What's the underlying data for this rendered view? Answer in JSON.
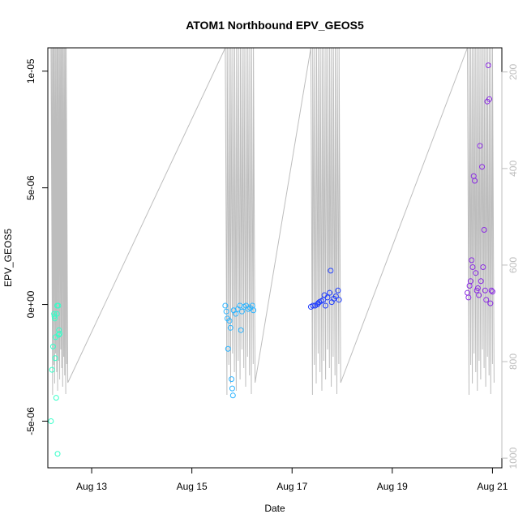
{
  "chart_data": {
    "type": "scatter",
    "title": "ATOM1 Northbound EPV_GEOS5",
    "xlabel": "Date",
    "ylabel": "EPV_GEOS5",
    "x_axis": {
      "type": "date",
      "range": [
        "2012-08-12T03:00",
        "2012-08-21T04:30"
      ],
      "ticks": [
        {
          "value": "2012-08-13",
          "label": "Aug 13"
        },
        {
          "value": "2012-08-15",
          "label": "Aug 15"
        },
        {
          "value": "2012-08-17",
          "label": "Aug 17"
        },
        {
          "value": "2012-08-19",
          "label": "Aug 19"
        },
        {
          "value": "2012-08-21",
          "label": "Aug 21"
        }
      ]
    },
    "y_axis": {
      "range": [
        -7e-06,
        1.1e-05
      ],
      "ticks": [
        {
          "value": -5e-06,
          "label": "-5e-06"
        },
        {
          "value": 0,
          "label": "0e+00"
        },
        {
          "value": 5e-06,
          "label": "5e-06"
        },
        {
          "value": 1e-05,
          "label": "1e-05"
        }
      ]
    },
    "right_axis": {
      "range": [
        1020,
        150
      ],
      "ticks": [
        {
          "value": 200,
          "label": "200"
        },
        {
          "value": 400,
          "label": "400"
        },
        {
          "value": 600,
          "label": "600"
        },
        {
          "value": 800,
          "label": "800"
        },
        {
          "value": 1000,
          "label": "1000"
        }
      ],
      "color": "#bdbdbd"
    },
    "line_color": "#bdbdbd",
    "point_colors": {
      "start": "#33ffc8",
      "mid": "#2db4ff",
      "deep": "#1e3cff",
      "end": "#8a2be2"
    },
    "series": [
      {
        "points": [
          {
            "x": "2012-08-12T06:00",
            "y": -4e-07
          },
          {
            "x": "2012-08-12T06:10",
            "y": -5e-07
          },
          {
            "x": "2012-08-12T06:20",
            "y": -6e-07
          },
          {
            "x": "2012-08-12T04:30",
            "y": -5e-06
          },
          {
            "x": "2012-08-12T05:00",
            "y": -2.8e-06
          },
          {
            "x": "2012-08-12T05:30",
            "y": -1.8e-06
          },
          {
            "x": "2012-08-12T06:30",
            "y": -2.3e-06
          },
          {
            "x": "2012-08-12T06:40",
            "y": -1.4e-06
          },
          {
            "x": "2012-08-12T07:00",
            "y": -4e-06
          },
          {
            "x": "2012-08-12T07:20",
            "y": -4e-07
          },
          {
            "x": "2012-08-12T07:40",
            "y": -6.4e-06
          },
          {
            "x": "2012-08-12T08:00",
            "y": -5e-08
          },
          {
            "x": "2012-08-12T07:30",
            "y": -5e-08
          },
          {
            "x": "2012-08-12T08:10",
            "y": -1.3e-06
          },
          {
            "x": "2012-08-12T08:20",
            "y": -1.1e-06
          },
          {
            "x": "2012-08-12T08:40",
            "y": -1.25e-06
          }
        ]
      },
      {
        "points": [
          {
            "x": "2012-08-15T16:00",
            "y": -5e-08
          },
          {
            "x": "2012-08-15T16:30",
            "y": -3e-07
          },
          {
            "x": "2012-08-15T17:00",
            "y": -6e-07
          },
          {
            "x": "2012-08-15T17:20",
            "y": -1.9e-06
          },
          {
            "x": "2012-08-15T18:00",
            "y": -7e-07
          },
          {
            "x": "2012-08-15T18:30",
            "y": -1e-06
          },
          {
            "x": "2012-08-15T19:00",
            "y": -3.2e-06
          },
          {
            "x": "2012-08-15T19:20",
            "y": -3.6e-06
          },
          {
            "x": "2012-08-15T19:40",
            "y": -3.9e-06
          },
          {
            "x": "2012-08-15T20:00",
            "y": -2.5e-07
          },
          {
            "x": "2012-08-15T21:00",
            "y": -4e-07
          },
          {
            "x": "2012-08-15T22:00",
            "y": -2e-07
          },
          {
            "x": "2012-08-15T23:00",
            "y": -5e-08
          },
          {
            "x": "2012-08-15T23:30",
            "y": -1.1e-06
          },
          {
            "x": "2012-08-16T00:00",
            "y": -3e-07
          },
          {
            "x": "2012-08-16T01:00",
            "y": -1e-07
          },
          {
            "x": "2012-08-16T02:00",
            "y": -5e-08
          },
          {
            "x": "2012-08-16T03:00",
            "y": -2e-07
          },
          {
            "x": "2012-08-16T04:00",
            "y": -1.5e-07
          },
          {
            "x": "2012-08-16T05:00",
            "y": -5e-08
          },
          {
            "x": "2012-08-16T05:30",
            "y": -2.5e-07
          }
        ]
      },
      {
        "points": [
          {
            "x": "2012-08-17T09:00",
            "y": -1e-07
          },
          {
            "x": "2012-08-17T10:00",
            "y": -5e-08
          },
          {
            "x": "2012-08-17T11:00",
            "y": -5e-08
          },
          {
            "x": "2012-08-17T12:00",
            "y": 0.0
          },
          {
            "x": "2012-08-17T12:30",
            "y": 5e-08
          },
          {
            "x": "2012-08-17T13:00",
            "y": 1e-07
          },
          {
            "x": "2012-08-17T14:00",
            "y": 1.5e-07
          },
          {
            "x": "2012-08-17T15:00",
            "y": 2e-07
          },
          {
            "x": "2012-08-17T15:30",
            "y": 4e-07
          },
          {
            "x": "2012-08-17T16:00",
            "y": -5e-08
          },
          {
            "x": "2012-08-17T17:00",
            "y": 3e-07
          },
          {
            "x": "2012-08-17T18:00",
            "y": 5e-07
          },
          {
            "x": "2012-08-17T18:30",
            "y": 1.45e-06
          },
          {
            "x": "2012-08-17T19:00",
            "y": 1e-07
          },
          {
            "x": "2012-08-17T20:00",
            "y": 2.5e-07
          },
          {
            "x": "2012-08-17T21:00",
            "y": 3.5e-07
          },
          {
            "x": "2012-08-17T22:00",
            "y": 6e-07
          },
          {
            "x": "2012-08-17T22:30",
            "y": 2e-07
          }
        ]
      },
      {
        "points": [
          {
            "x": "2012-08-20T12:00",
            "y": 5e-07
          },
          {
            "x": "2012-08-20T12:30",
            "y": 3e-07
          },
          {
            "x": "2012-08-20T13:00",
            "y": 8e-07
          },
          {
            "x": "2012-08-20T13:30",
            "y": 1e-06
          },
          {
            "x": "2012-08-20T14:00",
            "y": 1.9e-06
          },
          {
            "x": "2012-08-20T14:30",
            "y": 1.6e-06
          },
          {
            "x": "2012-08-20T15:00",
            "y": 5.5e-06
          },
          {
            "x": "2012-08-20T15:30",
            "y": 5.3e-06
          },
          {
            "x": "2012-08-20T16:00",
            "y": 1.35e-06
          },
          {
            "x": "2012-08-20T16:30",
            "y": 6e-07
          },
          {
            "x": "2012-08-20T17:00",
            "y": 7e-07
          },
          {
            "x": "2012-08-20T17:30",
            "y": 4e-07
          },
          {
            "x": "2012-08-20T18:00",
            "y": 6.8e-06
          },
          {
            "x": "2012-08-20T18:30",
            "y": 1e-06
          },
          {
            "x": "2012-08-20T19:00",
            "y": 5.9e-06
          },
          {
            "x": "2012-08-20T19:30",
            "y": 1.6e-06
          },
          {
            "x": "2012-08-20T20:00",
            "y": 3.2e-06
          },
          {
            "x": "2012-08-20T20:30",
            "y": 6e-07
          },
          {
            "x": "2012-08-20T21:00",
            "y": 2e-07
          },
          {
            "x": "2012-08-20T21:30",
            "y": 8.7e-06
          },
          {
            "x": "2012-08-20T22:00",
            "y": 1.025e-05
          },
          {
            "x": "2012-08-20T22:30",
            "y": 8.8e-06
          },
          {
            "x": "2012-08-20T23:00",
            "y": 5e-08
          },
          {
            "x": "2012-08-20T23:30",
            "y": 6e-07
          },
          {
            "x": "2012-08-21T00:00",
            "y": 5.5e-07
          }
        ]
      }
    ]
  }
}
